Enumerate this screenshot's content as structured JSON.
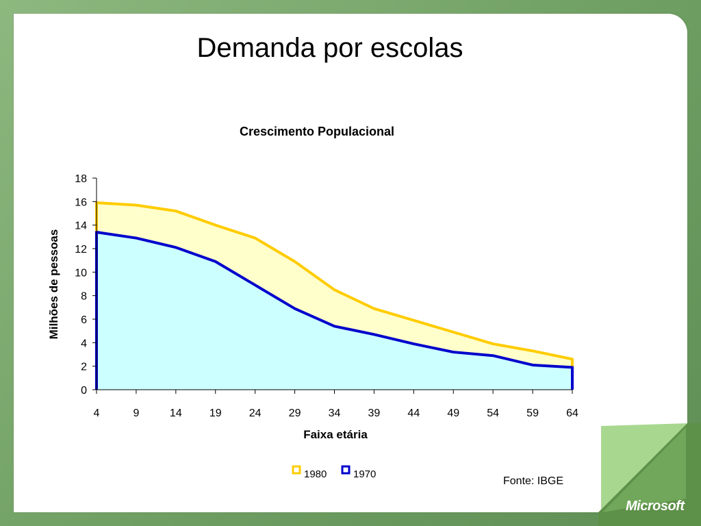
{
  "slide": {
    "title": "Demanda por escolas",
    "source": "Fonte: IBGE",
    "logo": "Microsoft"
  },
  "colors": {
    "series_1980_line": "#ffcc00",
    "series_1980_fill": "#ffffcc",
    "series_1970_line": "#0000cc",
    "series_1970_fill": "#ccffff",
    "background_green": "#6e9e62"
  },
  "chart_data": {
    "type": "area",
    "title": "Crescimento Populacional",
    "xlabel": "Faixa etária",
    "ylabel": "Milhões de pessoas",
    "x": [
      4,
      9,
      14,
      19,
      24,
      29,
      34,
      39,
      44,
      49,
      54,
      59,
      64
    ],
    "ylim": [
      0,
      18
    ],
    "yticks": [
      0,
      2,
      4,
      6,
      8,
      10,
      12,
      14,
      16,
      18
    ],
    "legend_position": "bottom",
    "series": [
      {
        "name": "1980",
        "values": [
          15.9,
          15.7,
          15.2,
          14.0,
          12.9,
          10.9,
          8.5,
          6.9,
          5.9,
          4.9,
          3.9,
          3.3,
          2.6
        ]
      },
      {
        "name": "1970",
        "values": [
          13.4,
          12.9,
          12.1,
          10.9,
          8.9,
          6.9,
          5.4,
          4.7,
          3.9,
          3.2,
          2.9,
          2.1,
          1.9
        ]
      }
    ]
  }
}
